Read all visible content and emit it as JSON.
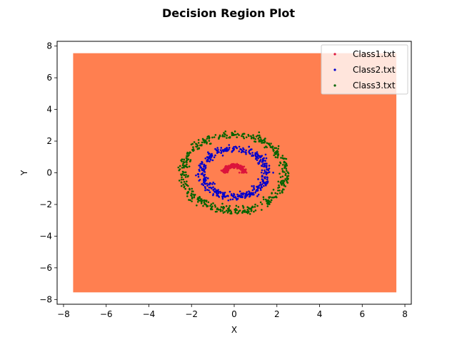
{
  "chart_data": {
    "type": "scatter",
    "title": "Decision Region Plot",
    "xlabel": "X",
    "ylabel": "Y",
    "xlim": [
      -8.3,
      8.3
    ],
    "ylim": [
      -8.3,
      8.3
    ],
    "xticks": [
      -8,
      -6,
      -4,
      -2,
      0,
      2,
      4,
      6,
      8
    ],
    "yticks": [
      -8,
      -6,
      -4,
      -2,
      0,
      2,
      4,
      6,
      8
    ],
    "grid": false,
    "legend_position": "top-right",
    "region": {
      "x_range": [
        -7.55,
        7.6
      ],
      "y_range": [
        -7.55,
        7.55
      ],
      "color": "#ff7f50"
    },
    "series": [
      {
        "name": "Class1.txt",
        "color": "#dc143c",
        "shape": "upper-half-ring",
        "center": [
          0,
          0
        ],
        "radius": 0.45,
        "noise": 0.06,
        "count": 260
      },
      {
        "name": "Class2.txt",
        "color": "#0000cd",
        "shape": "ring",
        "center": [
          0,
          0
        ],
        "radius": 1.5,
        "noise": 0.12,
        "count": 420
      },
      {
        "name": "Class3.txt",
        "color": "#006400",
        "shape": "ring",
        "center": [
          0,
          0
        ],
        "radius": 2.4,
        "noise": 0.13,
        "count": 480
      }
    ]
  }
}
